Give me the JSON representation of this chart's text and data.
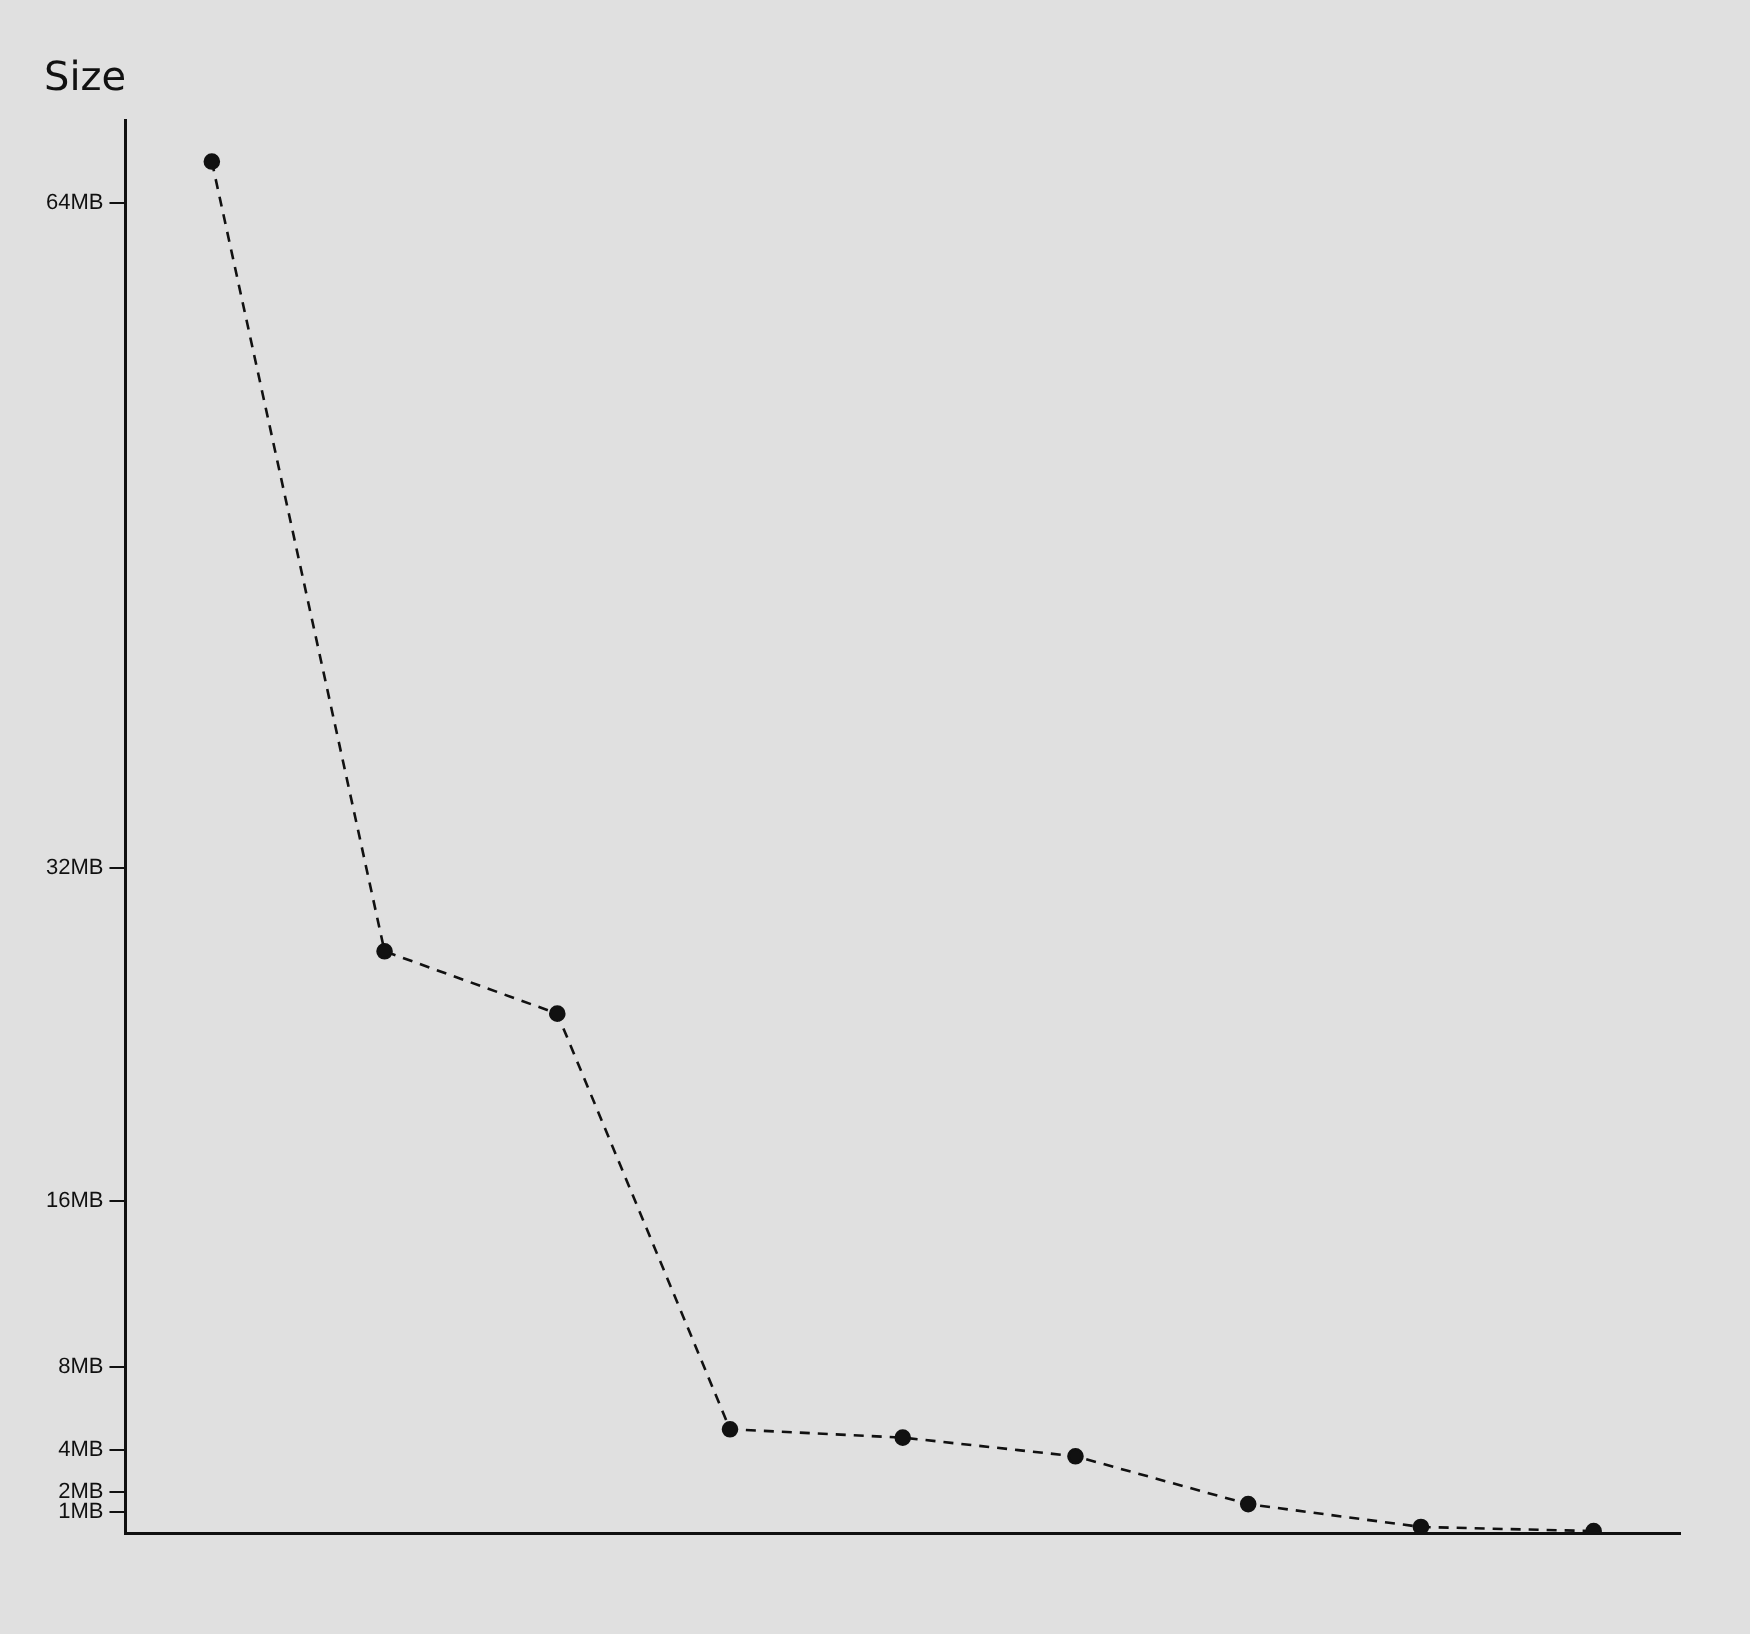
{
  "chart_data": {
    "type": "line",
    "ylabel": "Size",
    "categories": [
      null,
      null,
      null,
      null,
      null,
      null,
      null,
      null,
      null
    ],
    "series": [
      {
        "color": "#111111",
        "values": [
          66,
          28,
          25,
          5,
          4.6,
          3.7,
          1.4,
          0.3,
          0.1
        ]
      }
    ],
    "ylim": [
      0,
      68
    ],
    "yticks": [
      {
        "value": 1,
        "label": "1MB"
      },
      {
        "value": 2,
        "label": "2MB"
      },
      {
        "value": 4,
        "label": "4MB"
      },
      {
        "value": 8,
        "label": "8MB"
      },
      {
        "value": 16,
        "label": "16MB"
      },
      {
        "value": 32,
        "label": "32MB"
      },
      {
        "value": 64,
        "label": "64MB"
      }
    ],
    "grid": false,
    "legend": false,
    "marker": "circle",
    "line_style": "dashed"
  }
}
